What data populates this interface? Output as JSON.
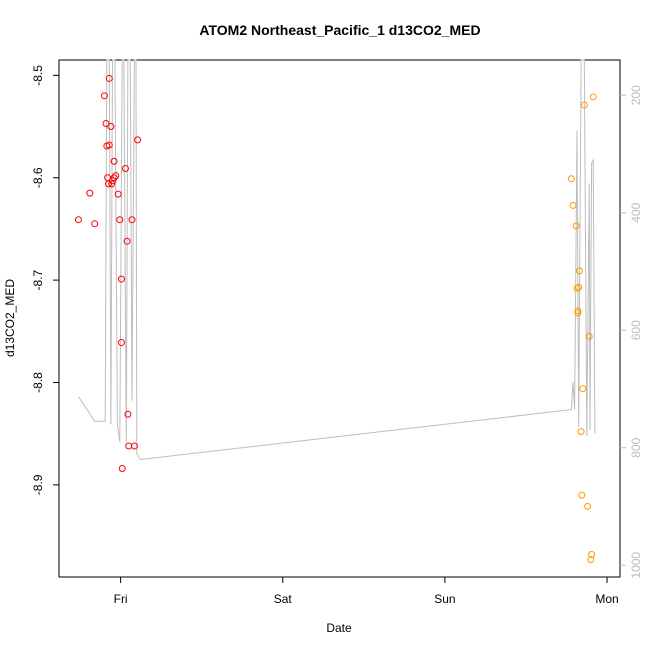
{
  "chart_data": {
    "type": "scatter",
    "title": "ATOM2 Northeast_Pacific_1 d13CO2_MED",
    "xlabel": "Date",
    "ylabel": "d13CO2_MED",
    "x_ticks": [
      "Fri",
      "Sat",
      "Sun",
      "Mon"
    ],
    "y_ticks": [
      "-8.5",
      "-8.6",
      "-8.7",
      "-8.8",
      "-8.9"
    ],
    "y2_ticks": [
      "200",
      "400",
      "600",
      "800",
      "1000"
    ],
    "xlim_days": [
      -0.38,
      3.08
    ],
    "ylim": [
      -8.99,
      -8.485
    ],
    "y2lim": [
      1020,
      140
    ],
    "grid": false,
    "colors": {
      "series1": "#ff0000",
      "series2": "#ff9900",
      "secondary_line": "#bdbdbd",
      "axis": "#000000",
      "right_axis": "#bdbdbd"
    },
    "series": [
      {
        "marker": "open-circle",
        "color": "#ff0000",
        "points": [
          {
            "x": -0.26,
            "y": -8.641
          },
          {
            "x": -0.19,
            "y": -8.615
          },
          {
            "x": -0.16,
            "y": -8.645
          },
          {
            "x": -0.1,
            "y": -8.52
          },
          {
            "x": -0.09,
            "y": -8.547
          },
          {
            "x": -0.085,
            "y": -8.569
          },
          {
            "x": -0.08,
            "y": -8.6
          },
          {
            "x": -0.075,
            "y": -8.606
          },
          {
            "x": -0.07,
            "y": -8.568
          },
          {
            "x": -0.07,
            "y": -8.503
          },
          {
            "x": -0.06,
            "y": -8.55
          },
          {
            "x": -0.055,
            "y": -8.606
          },
          {
            "x": -0.05,
            "y": -8.603
          },
          {
            "x": -0.04,
            "y": -8.6
          },
          {
            "x": -0.04,
            "y": -8.584
          },
          {
            "x": -0.03,
            "y": -8.598
          },
          {
            "x": -0.015,
            "y": -8.616
          },
          {
            "x": -0.005,
            "y": -8.641
          },
          {
            "x": 0.005,
            "y": -8.699
          },
          {
            "x": 0.005,
            "y": -8.761
          },
          {
            "x": 0.01,
            "y": -8.884
          },
          {
            "x": 0.03,
            "y": -8.591
          },
          {
            "x": 0.04,
            "y": -8.662
          },
          {
            "x": 0.045,
            "y": -8.831
          },
          {
            "x": 0.05,
            "y": -8.862
          },
          {
            "x": 0.07,
            "y": -8.641
          },
          {
            "x": 0.085,
            "y": -8.862
          },
          {
            "x": 0.105,
            "y": -8.563
          }
        ]
      },
      {
        "marker": "open-circle",
        "color": "#ff9900",
        "points": [
          {
            "x": 2.78,
            "y": -8.601
          },
          {
            "x": 2.79,
            "y": -8.627
          },
          {
            "x": 2.81,
            "y": -8.647
          },
          {
            "x": 2.815,
            "y": -8.708
          },
          {
            "x": 2.82,
            "y": -8.73
          },
          {
            "x": 2.82,
            "y": -8.732
          },
          {
            "x": 2.825,
            "y": -8.707
          },
          {
            "x": 2.83,
            "y": -8.691
          },
          {
            "x": 2.84,
            "y": -8.848
          },
          {
            "x": 2.845,
            "y": -8.91
          },
          {
            "x": 2.85,
            "y": -8.806
          },
          {
            "x": 2.86,
            "y": -8.529
          },
          {
            "x": 2.88,
            "y": -8.921
          },
          {
            "x": 2.89,
            "y": -8.755
          },
          {
            "x": 2.9,
            "y": -8.973
          },
          {
            "x": 2.905,
            "y": -8.968
          },
          {
            "x": 2.915,
            "y": -8.521
          }
        ]
      },
      {
        "axis": "secondary",
        "style": "line",
        "color": "#bdbdbd",
        "points": [
          {
            "x": -0.26,
            "y": 713
          },
          {
            "x": -0.16,
            "y": 755
          },
          {
            "x": -0.095,
            "y": 755
          },
          {
            "x": -0.085,
            "y": 140
          },
          {
            "x": -0.07,
            "y": 140
          },
          {
            "x": -0.06,
            "y": 760
          },
          {
            "x": -0.05,
            "y": 140
          },
          {
            "x": -0.035,
            "y": 140
          },
          {
            "x": -0.02,
            "y": 760
          },
          {
            "x": -0.005,
            "y": 790
          },
          {
            "x": 0.01,
            "y": 140
          },
          {
            "x": 0.02,
            "y": 140
          },
          {
            "x": 0.035,
            "y": 790
          },
          {
            "x": 0.045,
            "y": 140
          },
          {
            "x": 0.06,
            "y": 140
          },
          {
            "x": 0.07,
            "y": 720
          },
          {
            "x": 0.085,
            "y": 140
          },
          {
            "x": 0.095,
            "y": 140
          },
          {
            "x": 0.1,
            "y": 810
          },
          {
            "x": 0.12,
            "y": 820
          },
          {
            "x": 2.78,
            "y": 735
          },
          {
            "x": 2.79,
            "y": 688
          },
          {
            "x": 2.8,
            "y": 735
          },
          {
            "x": 2.815,
            "y": 260
          },
          {
            "x": 2.825,
            "y": 765
          },
          {
            "x": 2.84,
            "y": 140
          },
          {
            "x": 2.86,
            "y": 140
          },
          {
            "x": 2.875,
            "y": 780
          },
          {
            "x": 2.89,
            "y": 350
          },
          {
            "x": 2.895,
            "y": 770
          },
          {
            "x": 2.905,
            "y": 315
          },
          {
            "x": 2.915,
            "y": 310
          },
          {
            "x": 2.925,
            "y": 775
          }
        ]
      }
    ]
  }
}
